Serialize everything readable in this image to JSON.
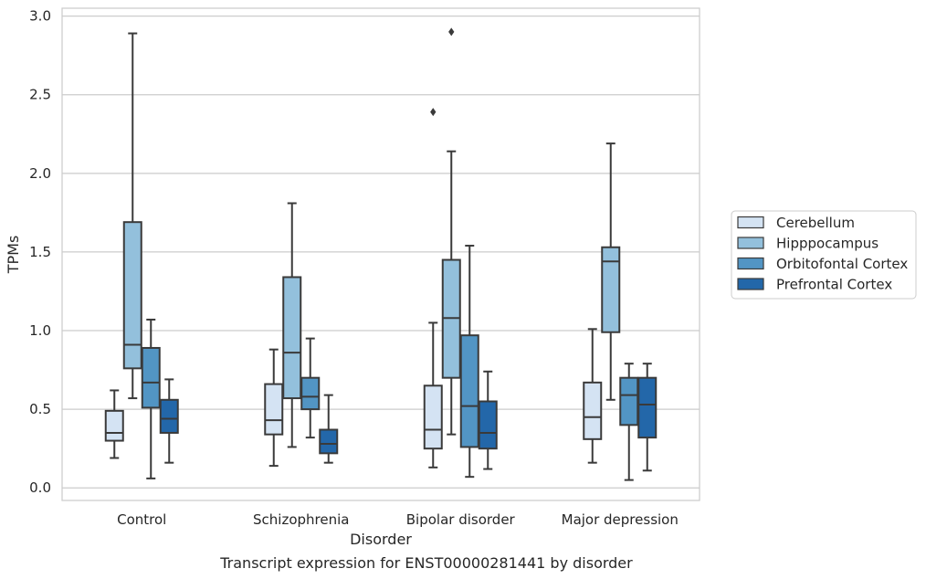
{
  "chart_data": {
    "type": "box",
    "caption": "Transcript expression for ENST00000281441 by disorder",
    "xlabel": "Disorder",
    "ylabel": "TPMs",
    "ylim": [
      -0.08,
      3.05
    ],
    "yticks": [
      "0.0",
      "0.5",
      "1.0",
      "1.5",
      "2.0",
      "2.5",
      "3.0"
    ],
    "grid": "horizontal",
    "legend_position": "right",
    "categories": [
      "Control",
      "Schizophrenia",
      "Bipolar disorder",
      "Major depression"
    ],
    "series": [
      {
        "name": "Cerebellum",
        "color": "#d4e3f3",
        "boxes": [
          {
            "whisker_low": 0.19,
            "q1": 0.3,
            "median": 0.35,
            "q3": 0.49,
            "whisker_high": 0.62,
            "outliers": []
          },
          {
            "whisker_low": 0.14,
            "q1": 0.34,
            "median": 0.43,
            "q3": 0.66,
            "whisker_high": 0.88,
            "outliers": []
          },
          {
            "whisker_low": 0.13,
            "q1": 0.25,
            "median": 0.37,
            "q3": 0.65,
            "whisker_high": 1.05,
            "outliers": [
              2.39
            ]
          },
          {
            "whisker_low": 0.16,
            "q1": 0.31,
            "median": 0.45,
            "q3": 0.67,
            "whisker_high": 1.01,
            "outliers": []
          }
        ]
      },
      {
        "name": "Hipppocampus",
        "color": "#93c0dc",
        "boxes": [
          {
            "whisker_low": 0.57,
            "q1": 0.76,
            "median": 0.91,
            "q3": 1.69,
            "whisker_high": 2.89,
            "outliers": []
          },
          {
            "whisker_low": 0.26,
            "q1": 0.57,
            "median": 0.86,
            "q3": 1.34,
            "whisker_high": 1.81,
            "outliers": []
          },
          {
            "whisker_low": 0.34,
            "q1": 0.7,
            "median": 1.08,
            "q3": 1.45,
            "whisker_high": 2.14,
            "outliers": [
              2.9
            ]
          },
          {
            "whisker_low": 0.56,
            "q1": 0.99,
            "median": 1.44,
            "q3": 1.53,
            "whisker_high": 2.19,
            "outliers": []
          }
        ]
      },
      {
        "name": "Orbitofontal Cortex",
        "color": "#5295c4",
        "boxes": [
          {
            "whisker_low": 0.06,
            "q1": 0.51,
            "median": 0.67,
            "q3": 0.89,
            "whisker_high": 1.07,
            "outliers": []
          },
          {
            "whisker_low": 0.32,
            "q1": 0.5,
            "median": 0.58,
            "q3": 0.7,
            "whisker_high": 0.95,
            "outliers": []
          },
          {
            "whisker_low": 0.07,
            "q1": 0.26,
            "median": 0.52,
            "q3": 0.97,
            "whisker_high": 1.54,
            "outliers": []
          },
          {
            "whisker_low": 0.05,
            "q1": 0.4,
            "median": 0.59,
            "q3": 0.7,
            "whisker_high": 0.79,
            "outliers": []
          }
        ]
      },
      {
        "name": "Prefrontal Cortex",
        "color": "#2367a9",
        "boxes": [
          {
            "whisker_low": 0.16,
            "q1": 0.35,
            "median": 0.44,
            "q3": 0.56,
            "whisker_high": 0.69,
            "outliers": []
          },
          {
            "whisker_low": 0.16,
            "q1": 0.22,
            "median": 0.28,
            "q3": 0.37,
            "whisker_high": 0.59,
            "outliers": []
          },
          {
            "whisker_low": 0.12,
            "q1": 0.25,
            "median": 0.35,
            "q3": 0.55,
            "whisker_high": 0.74,
            "outliers": []
          },
          {
            "whisker_low": 0.11,
            "q1": 0.32,
            "median": 0.53,
            "q3": 0.7,
            "whisker_high": 0.79,
            "outliers": []
          }
        ]
      }
    ]
  }
}
